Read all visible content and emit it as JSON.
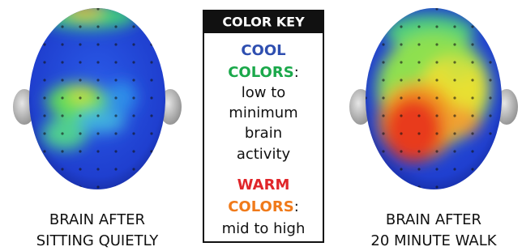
{
  "left_panel": {
    "caption": [
      "BRAIN AFTER",
      "SITTING QUIETLY"
    ]
  },
  "right_panel": {
    "caption": [
      "BRAIN AFTER",
      "20 MINUTE WALK"
    ]
  },
  "color_key": {
    "title": "COLOR KEY",
    "cool": {
      "word1": "COOL",
      "word2": "COLORS",
      "colon": ":",
      "description": [
        "low to",
        "minimum",
        "brain",
        "activity"
      ]
    },
    "warm": {
      "word1": "WARM",
      "word2": "COLORS",
      "colon": ":",
      "description": [
        "mid to high"
      ]
    }
  }
}
